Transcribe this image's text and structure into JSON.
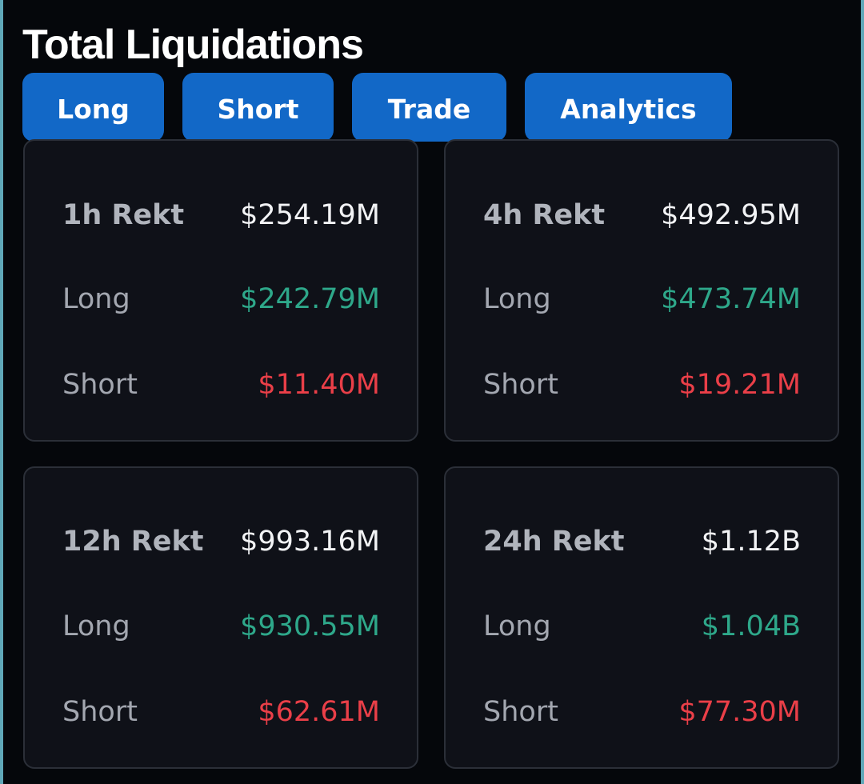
{
  "title": "Total Liquidations",
  "tabs": [
    {
      "label": "Long"
    },
    {
      "label": "Short"
    },
    {
      "label": "Trade"
    },
    {
      "label": "Analytics"
    }
  ],
  "panels": [
    {
      "period_label": "1h Rekt",
      "total": "$254.19M",
      "long_label": "Long",
      "long_value": "$242.79M",
      "short_label": "Short",
      "short_value": "$11.40M"
    },
    {
      "period_label": "4h Rekt",
      "total": "$492.95M",
      "long_label": "Long",
      "long_value": "$473.74M",
      "short_label": "Short",
      "short_value": "$19.21M"
    },
    {
      "period_label": "12h Rekt",
      "total": "$993.16M",
      "long_label": "Long",
      "long_value": "$930.55M",
      "short_label": "Short",
      "short_value": "$62.61M"
    },
    {
      "period_label": "24h Rekt",
      "total": "$1.12B",
      "long_label": "Long",
      "long_value": "$1.04B",
      "short_label": "Short",
      "short_value": "$77.30M"
    }
  ],
  "colors": {
    "background": "#05070b",
    "panel": "#0f1118",
    "tab": "#1268c7",
    "long": "#2ea88a",
    "short": "#ea3f48"
  }
}
